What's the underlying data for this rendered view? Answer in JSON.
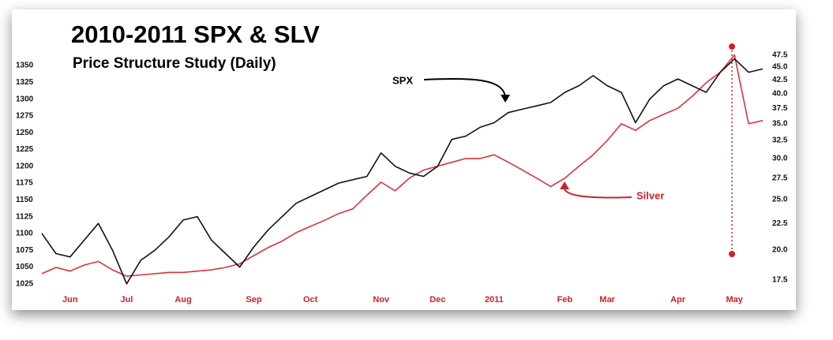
{
  "chart_data": {
    "type": "line",
    "title": "2010-2011 SPX & SLV",
    "subtitle": "Price Structure Study (Daily)",
    "categories": [
      null,
      null,
      "Jun",
      null,
      null,
      null,
      "Jul",
      null,
      null,
      null,
      "Aug",
      null,
      null,
      null,
      null,
      "Sep",
      null,
      null,
      null,
      "Oct",
      null,
      null,
      null,
      null,
      "Nov",
      null,
      null,
      null,
      "Dec",
      null,
      null,
      null,
      "2011",
      null,
      null,
      null,
      null,
      "Feb",
      null,
      null,
      "Mar",
      null,
      null,
      null,
      null,
      "Apr",
      null,
      null,
      null,
      "May",
      null,
      null
    ],
    "series": [
      {
        "name": "SPX",
        "color": "#111111",
        "axis": "y",
        "values": [
          1100,
          1070,
          1065,
          1090,
          1115,
          1075,
          1025,
          1060,
          1075,
          1095,
          1120,
          1125,
          1090,
          1070,
          1050,
          1080,
          1105,
          1125,
          1145,
          1155,
          1165,
          1175,
          1180,
          1185,
          1220,
          1200,
          1190,
          1185,
          1200,
          1240,
          1245,
          1258,
          1265,
          1280,
          1285,
          1290,
          1295,
          1310,
          1320,
          1335,
          1320,
          1310,
          1265,
          1300,
          1320,
          1330,
          1320,
          1310,
          1340,
          1360,
          1340,
          1345
        ]
      },
      {
        "name": "Silver",
        "color": "#e0303a",
        "axis": "y2",
        "values": [
          18.0,
          18.5,
          18.2,
          18.7,
          19.0,
          18.3,
          17.8,
          17.9,
          18.0,
          18.1,
          18.1,
          18.2,
          18.3,
          18.5,
          18.8,
          19.5,
          20.2,
          20.8,
          21.6,
          22.2,
          22.8,
          23.5,
          24.0,
          25.5,
          27.0,
          26.0,
          27.5,
          28.5,
          29.0,
          29.5,
          30.0,
          30.0,
          30.5,
          29.5,
          28.5,
          27.5,
          26.5,
          27.5,
          29.0,
          30.5,
          32.5,
          35.0,
          34.0,
          35.5,
          36.5,
          37.5,
          39.5,
          42.0,
          44.0,
          47.5,
          35.0,
          35.5
        ]
      }
    ],
    "ylim": [
      1013,
      1383
    ],
    "yticks": [
      1025,
      1050,
      1075,
      1100,
      1125,
      1150,
      1175,
      1200,
      1225,
      1250,
      1275,
      1300,
      1325,
      1350
    ],
    "y2lim": [
      16.6,
      50
    ],
    "y2_log": true,
    "y2ticks": [
      17.5,
      {
        "value": 20,
        "label": "20.0"
      },
      22.5,
      {
        "value": 25,
        "label": "25.0"
      },
      27.5,
      {
        "value": 30,
        "label": "30.0"
      },
      32.5,
      {
        "value": 35,
        "label": "35.0"
      },
      37.5,
      {
        "value": 40,
        "label": "40.0"
      },
      42.5,
      {
        "value": 45,
        "label": "45.0"
      },
      47.5
    ],
    "grid": false
  }
}
